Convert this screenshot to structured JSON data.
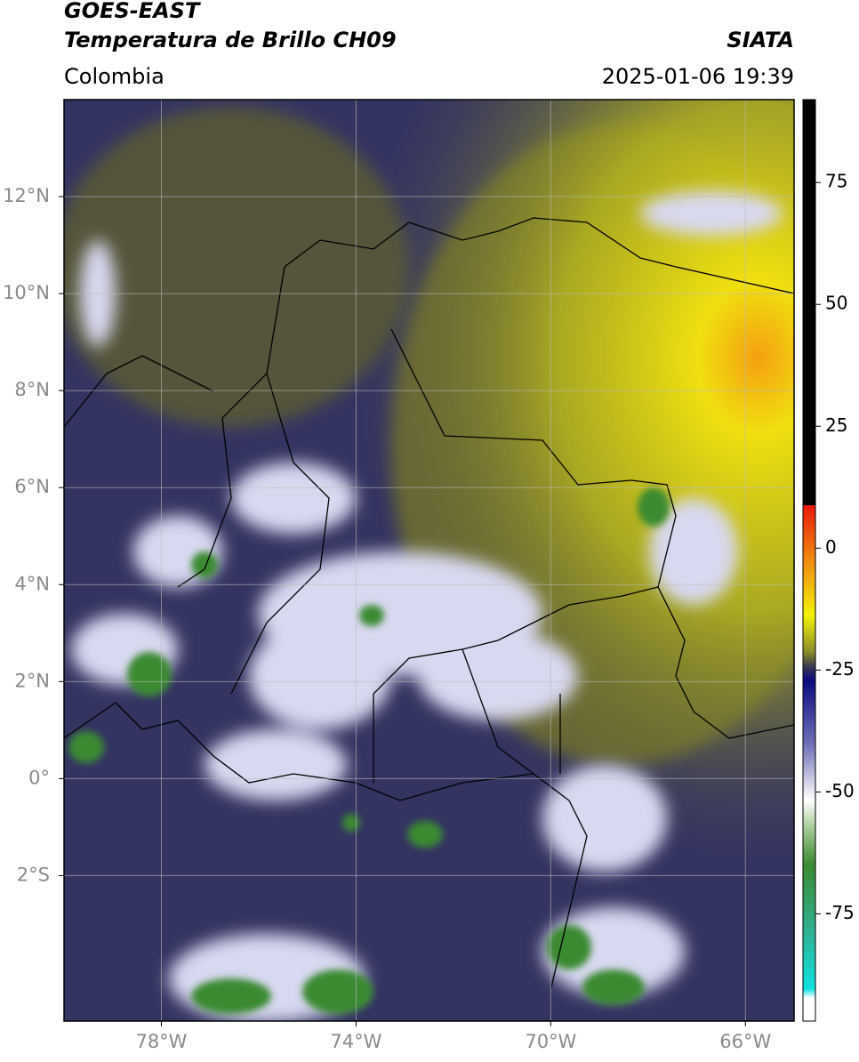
{
  "header": {
    "title": "GOES-EAST",
    "subtitle": "Temperatura de Brillo CH09",
    "source": "SIATA",
    "region": "Colombia",
    "datetime": "2025-01-06 19:39"
  },
  "map": {
    "lon_range": [
      -80,
      -65
    ],
    "lat_range": [
      -5,
      14
    ],
    "lon_ticks": [
      {
        "value": -78,
        "label": "78°W"
      },
      {
        "value": -74,
        "label": "74°W"
      },
      {
        "value": -70,
        "label": "70°W"
      },
      {
        "value": -66,
        "label": "66°W"
      }
    ],
    "lat_ticks": [
      {
        "value": 12,
        "label": "12°N"
      },
      {
        "value": 10,
        "label": "10°N"
      },
      {
        "value": 8,
        "label": "8°N"
      },
      {
        "value": 6,
        "label": "6°N"
      },
      {
        "value": 4,
        "label": "4°N"
      },
      {
        "value": 2,
        "label": "2°N"
      },
      {
        "value": 0,
        "label": "0°"
      },
      {
        "value": -2,
        "label": "2°S"
      }
    ]
  },
  "colorbar": {
    "range": [
      -97,
      92
    ],
    "ticks": [
      75,
      50,
      25,
      0,
      -25,
      -50,
      -75
    ]
  }
}
